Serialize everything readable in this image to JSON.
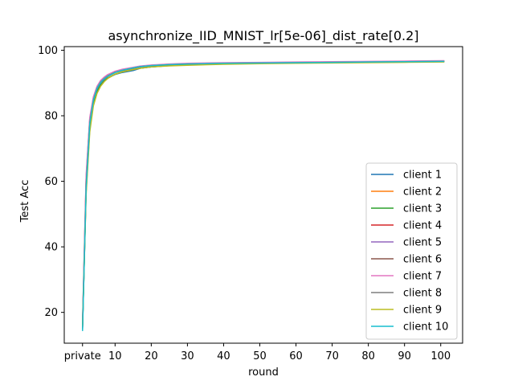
{
  "chart_data": {
    "type": "line",
    "title": "asynchronize_IID_MNIST_lr[5e-06]_dist_rate[0.2]",
    "xlabel": "round",
    "ylabel": "Test Acc",
    "xlim": [
      -4.05,
      106.05
    ],
    "ylim": [
      10.6,
      101.1
    ],
    "x_ticks": [
      {
        "value": 1,
        "label": "private"
      },
      {
        "value": 10,
        "label": "10"
      },
      {
        "value": 20,
        "label": "20"
      },
      {
        "value": 30,
        "label": "30"
      },
      {
        "value": 40,
        "label": "40"
      },
      {
        "value": 50,
        "label": "50"
      },
      {
        "value": 60,
        "label": "60"
      },
      {
        "value": 70,
        "label": "70"
      },
      {
        "value": 80,
        "label": "80"
      },
      {
        "value": 90,
        "label": "90"
      },
      {
        "value": 100,
        "label": "100"
      }
    ],
    "y_ticks": [
      {
        "value": 20,
        "label": "20"
      },
      {
        "value": 40,
        "label": "40"
      },
      {
        "value": 60,
        "label": "60"
      },
      {
        "value": 80,
        "label": "80"
      },
      {
        "value": 100,
        "label": "100"
      }
    ],
    "grid": false,
    "legend_position": "lower-right",
    "series": [
      {
        "name": "client 1",
        "color": "#1f77b4",
        "x": [
          1,
          2,
          3,
          4,
          5,
          6,
          7,
          8,
          10,
          12,
          15,
          17,
          20,
          25,
          30,
          40,
          50,
          60,
          70,
          80,
          90,
          101
        ],
        "values": [
          15.0,
          58.0,
          77.0,
          84.0,
          87.5,
          89.5,
          90.7,
          91.5,
          92.6,
          93.2,
          93.8,
          94.5,
          94.9,
          95.3,
          95.6,
          95.9,
          96.0,
          96.1,
          96.3,
          96.4,
          96.5,
          96.6
        ]
      },
      {
        "name": "client 2",
        "color": "#ff7f0e",
        "x": [
          1,
          2,
          3,
          4,
          5,
          6,
          7,
          8,
          10,
          12,
          15,
          17,
          20,
          25,
          30,
          40,
          50,
          60,
          70,
          80,
          90,
          101
        ],
        "values": [
          16.0,
          60.0,
          78.0,
          85.0,
          88.5,
          90.3,
          91.4,
          92.2,
          93.3,
          93.9,
          94.6,
          95.0,
          95.3,
          95.6,
          95.8,
          96.0,
          96.1,
          96.2,
          96.3,
          96.4,
          96.5,
          96.6
        ]
      },
      {
        "name": "client 3",
        "color": "#2ca02c",
        "x": [
          1,
          2,
          3,
          4,
          5,
          6,
          7,
          8,
          10,
          12,
          15,
          17,
          20,
          25,
          30,
          40,
          50,
          60,
          70,
          80,
          90,
          101
        ],
        "values": [
          14.8,
          57.0,
          76.0,
          83.5,
          87.2,
          89.3,
          90.6,
          91.5,
          92.7,
          93.4,
          94.1,
          94.5,
          94.9,
          95.3,
          95.6,
          95.9,
          96.1,
          96.2,
          96.3,
          96.4,
          96.5,
          96.6
        ]
      },
      {
        "name": "client 4",
        "color": "#d62728",
        "x": [
          1,
          2,
          3,
          4,
          5,
          6,
          7,
          8,
          10,
          12,
          15,
          17,
          20,
          25,
          30,
          40,
          50,
          60,
          70,
          80,
          90,
          101
        ],
        "values": [
          16.5,
          61.0,
          79.0,
          85.5,
          88.8,
          90.5,
          91.6,
          92.4,
          93.5,
          94.1,
          94.7,
          95.1,
          95.4,
          95.7,
          95.9,
          96.1,
          96.2,
          96.3,
          96.4,
          96.5,
          96.6,
          96.7
        ]
      },
      {
        "name": "client 5",
        "color": "#9467bd",
        "x": [
          1,
          2,
          3,
          4,
          5,
          6,
          7,
          8,
          10,
          12,
          15,
          17,
          20,
          25,
          30,
          40,
          50,
          60,
          70,
          80,
          90,
          101
        ],
        "values": [
          15.5,
          59.5,
          78.5,
          85.2,
          88.7,
          90.6,
          91.7,
          92.5,
          93.5,
          94.1,
          94.7,
          95.1,
          95.4,
          95.7,
          95.9,
          96.1,
          96.2,
          96.3,
          96.4,
          96.5,
          96.6,
          96.7
        ]
      },
      {
        "name": "client 6",
        "color": "#8c564b",
        "x": [
          1,
          2,
          3,
          4,
          5,
          6,
          7,
          8,
          10,
          12,
          15,
          17,
          20,
          25,
          30,
          40,
          50,
          60,
          70,
          80,
          90,
          101
        ],
        "values": [
          15.2,
          58.5,
          77.5,
          84.8,
          88.2,
          90.1,
          91.2,
          92.0,
          93.2,
          93.8,
          94.5,
          94.9,
          95.3,
          95.6,
          95.8,
          96.0,
          96.1,
          96.2,
          96.3,
          96.4,
          96.5,
          96.6
        ]
      },
      {
        "name": "client 7",
        "color": "#e377c2",
        "x": [
          1,
          2,
          3,
          4,
          5,
          6,
          7,
          8,
          10,
          12,
          15,
          17,
          20,
          25,
          30,
          40,
          50,
          60,
          70,
          80,
          90,
          101
        ],
        "values": [
          16.8,
          62.0,
          79.5,
          85.8,
          89.0,
          90.8,
          91.8,
          92.6,
          93.6,
          94.2,
          94.8,
          95.2,
          95.5,
          95.8,
          96.0,
          96.2,
          96.3,
          96.4,
          96.5,
          96.6,
          96.7,
          96.8
        ]
      },
      {
        "name": "client 8",
        "color": "#7f7f7f",
        "x": [
          1,
          2,
          3,
          4,
          5,
          6,
          7,
          8,
          10,
          12,
          15,
          17,
          20,
          25,
          30,
          40,
          50,
          60,
          70,
          80,
          90,
          101
        ],
        "values": [
          15.4,
          59.0,
          78.0,
          84.9,
          88.4,
          90.3,
          91.4,
          92.2,
          93.3,
          93.9,
          94.6,
          95.0,
          95.3,
          95.6,
          95.8,
          96.0,
          96.1,
          96.2,
          96.3,
          96.4,
          96.5,
          96.6
        ]
      },
      {
        "name": "client 9",
        "color": "#bcbd22",
        "x": [
          1,
          2,
          3,
          4,
          5,
          6,
          7,
          8,
          10,
          12,
          15,
          17,
          20,
          25,
          30,
          40,
          50,
          60,
          70,
          80,
          90,
          101
        ],
        "values": [
          15.8,
          56.0,
          75.0,
          83.0,
          86.8,
          89.0,
          90.4,
          91.4,
          92.7,
          93.4,
          94.1,
          94.5,
          94.9,
          95.2,
          95.4,
          95.7,
          95.9,
          96.0,
          96.1,
          96.2,
          96.3,
          96.4
        ]
      },
      {
        "name": "client 10",
        "color": "#17becf",
        "x": [
          1,
          2,
          3,
          4,
          5,
          6,
          7,
          8,
          10,
          12,
          15,
          17,
          20,
          25,
          30,
          40,
          50,
          60,
          70,
          80,
          90,
          101
        ],
        "values": [
          14.3,
          58.0,
          77.5,
          84.7,
          88.3,
          90.2,
          91.3,
          92.1,
          93.2,
          93.9,
          94.6,
          95.0,
          95.3,
          95.6,
          95.8,
          96.0,
          96.1,
          96.2,
          96.3,
          96.4,
          96.5,
          96.6
        ]
      }
    ]
  }
}
